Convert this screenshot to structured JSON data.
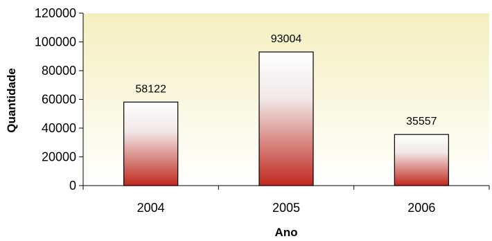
{
  "chart_data": {
    "type": "bar",
    "title": "",
    "xlabel": "Ano",
    "ylabel": "Quantidade",
    "categories": [
      "2004",
      "2005",
      "2006"
    ],
    "values": [
      58122,
      93004,
      35557
    ],
    "data_labels": [
      "58122",
      "93004",
      "35557"
    ],
    "ylim": [
      0,
      120000
    ],
    "yticks": [
      0,
      20000,
      40000,
      60000,
      80000,
      100000,
      120000
    ],
    "grid": false,
    "legend": "none",
    "colors": {
      "plot_bg_top": "#f5efbf",
      "plot_bg_bottom": "#ffffff",
      "bar_top": "#ffffff",
      "bar_bottom": "#c0281e",
      "bar_stroke": "#000000"
    }
  }
}
